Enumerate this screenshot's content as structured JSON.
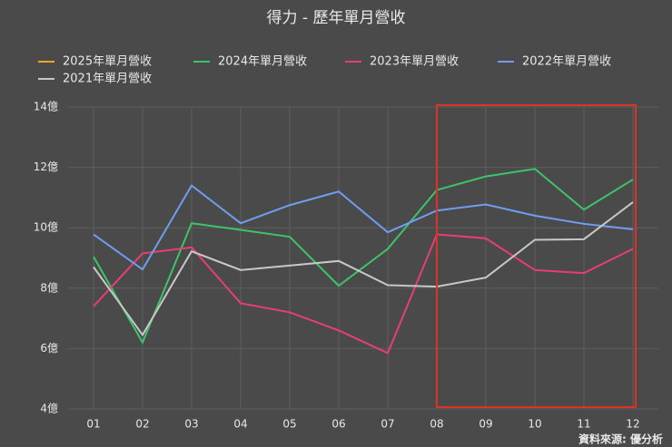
{
  "chart_data": {
    "type": "line",
    "title": "得力 - 歷年單月營收",
    "categories": [
      "01",
      "02",
      "03",
      "04",
      "05",
      "06",
      "07",
      "08",
      "09",
      "10",
      "11",
      "12"
    ],
    "series": [
      {
        "name": "2025年單月營收",
        "color": "#f5a623",
        "values": [
          null,
          null,
          null,
          null,
          null,
          null,
          null,
          null,
          null,
          null,
          null,
          null
        ]
      },
      {
        "name": "2024年單月營收",
        "color": "#3cc46a",
        "values": [
          9.04,
          6.2,
          10.15,
          9.93,
          9.7,
          8.08,
          9.3,
          11.25,
          11.7,
          11.95,
          10.6,
          11.6
        ]
      },
      {
        "name": "2023年單月營收",
        "color": "#e83e75",
        "values": [
          7.4,
          9.15,
          9.35,
          7.5,
          7.2,
          6.6,
          5.85,
          9.78,
          9.65,
          8.6,
          8.5,
          9.3
        ]
      },
      {
        "name": "2022年單月營收",
        "color": "#6f9df0",
        "values": [
          9.78,
          8.62,
          11.4,
          10.15,
          10.75,
          11.2,
          9.85,
          10.57,
          10.77,
          10.4,
          10.13,
          9.95
        ]
      },
      {
        "name": "2021年單月營收",
        "color": "#c8c8c8",
        "values": [
          8.7,
          6.45,
          9.22,
          8.6,
          8.75,
          8.9,
          8.1,
          8.05,
          8.35,
          9.6,
          9.62,
          10.85
        ]
      }
    ],
    "ylim": [
      4,
      14
    ],
    "yticks": [
      {
        "value": 4,
        "label": "4億"
      },
      {
        "value": 6,
        "label": "6億"
      },
      {
        "value": 8,
        "label": "8億"
      },
      {
        "value": 10,
        "label": "10億"
      },
      {
        "value": 12,
        "label": "12億"
      },
      {
        "value": 14,
        "label": "14億"
      }
    ],
    "grid": true,
    "source": "資料來源: 優分析"
  }
}
